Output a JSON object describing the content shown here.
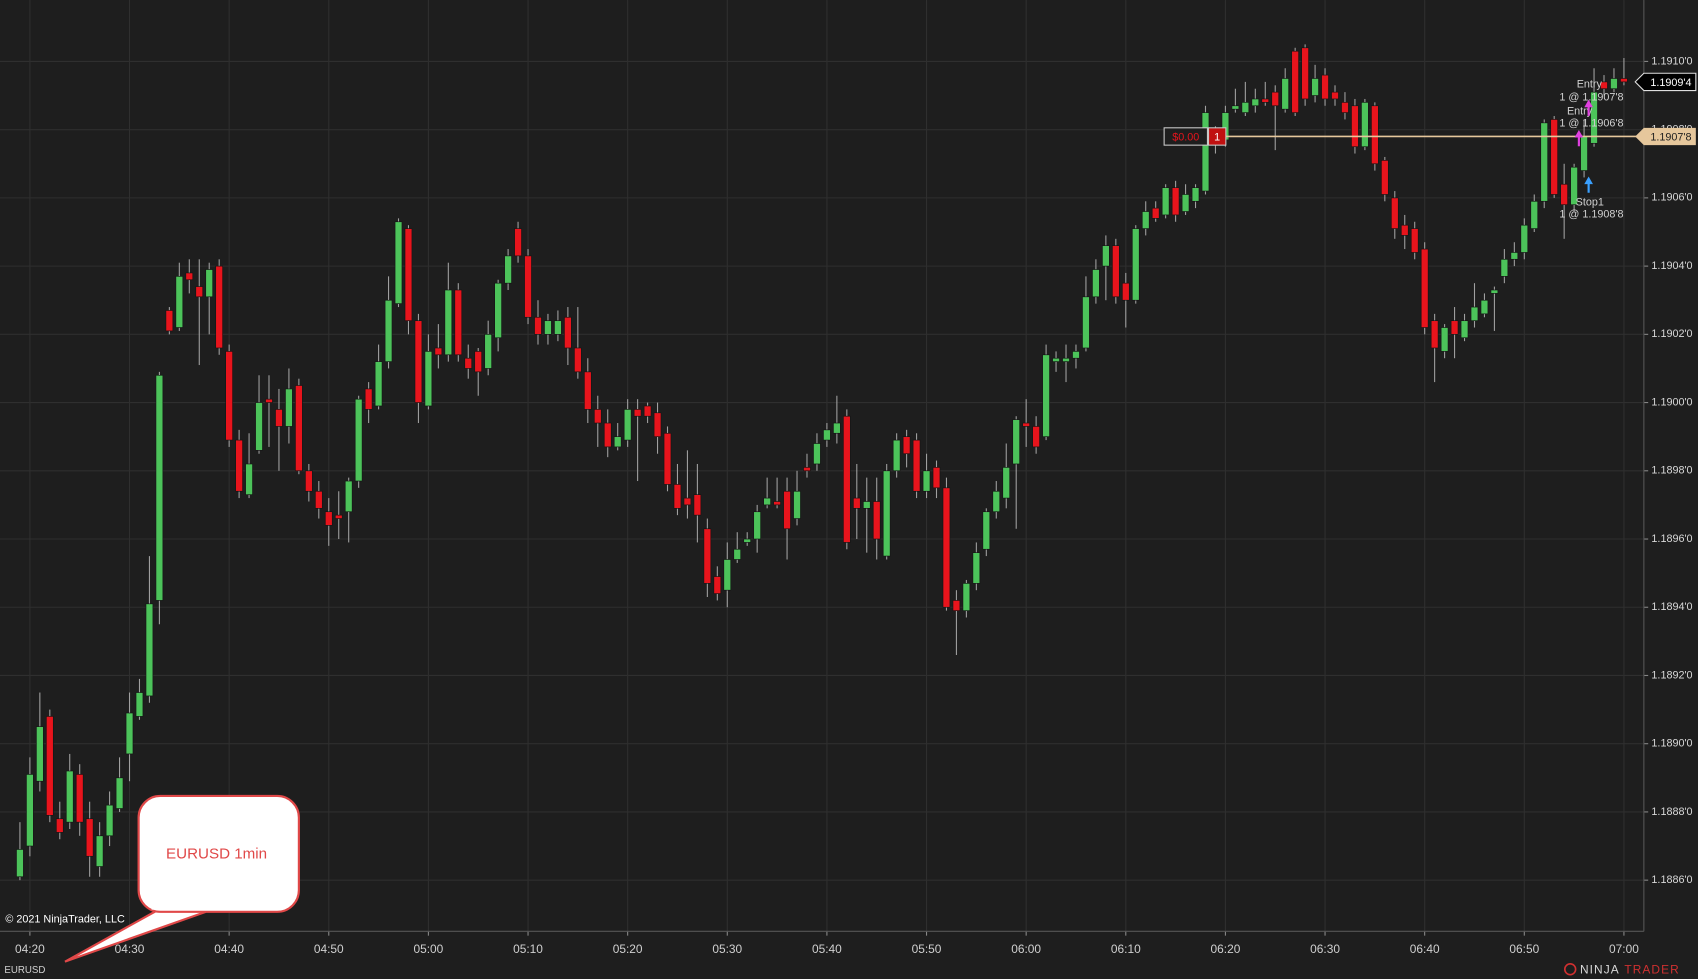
{
  "chart_data": {
    "type": "candlestick",
    "instrument": "EURUSD",
    "copyright": "© 2021 NinjaTrader, LLC",
    "annotation": "EURUSD 1min",
    "logo": [
      "NINJA",
      "TRADER"
    ],
    "up_color": "#4cc35a",
    "down_color": "#e8141c",
    "grid": true,
    "x": [
      "04:19",
      "04:20",
      "04:21",
      "04:22",
      "04:23",
      "04:24",
      "04:25",
      "04:26",
      "04:27",
      "04:28",
      "04:29",
      "04:30",
      "04:31",
      "04:32",
      "04:33",
      "04:34",
      "04:35",
      "04:36",
      "04:37",
      "04:38",
      "04:39",
      "04:40",
      "04:41",
      "04:42",
      "04:43",
      "04:44",
      "04:45",
      "04:46",
      "04:47",
      "04:48",
      "04:49",
      "04:50",
      "04:51",
      "04:52",
      "04:53",
      "04:54",
      "04:55",
      "04:56",
      "04:57",
      "04:58",
      "04:59",
      "05:00",
      "05:01",
      "05:02",
      "05:03",
      "05:04",
      "05:05",
      "05:06",
      "05:07",
      "05:08",
      "05:09",
      "05:10",
      "05:11",
      "05:12",
      "05:13",
      "05:14",
      "05:15",
      "05:16",
      "05:17",
      "05:18",
      "05:19",
      "05:20",
      "05:21",
      "05:22",
      "05:23",
      "05:24",
      "05:25",
      "05:26",
      "05:27",
      "05:28",
      "05:29",
      "05:30",
      "05:31",
      "05:32",
      "05:33",
      "05:34",
      "05:35",
      "05:36",
      "05:37",
      "05:38",
      "05:39",
      "05:40",
      "05:41",
      "05:42",
      "05:43",
      "05:44",
      "05:45",
      "05:46",
      "05:47",
      "05:48",
      "05:49",
      "05:50",
      "05:51",
      "05:52",
      "05:53",
      "05:54",
      "05:55",
      "05:56",
      "05:57",
      "05:58",
      "05:59",
      "06:00",
      "06:01",
      "06:02",
      "06:03",
      "06:04",
      "06:05",
      "06:06",
      "06:07",
      "06:08",
      "06:09",
      "06:10",
      "06:11",
      "06:12",
      "06:13",
      "06:14",
      "06:15",
      "06:16",
      "06:17",
      "06:18",
      "06:19",
      "06:20",
      "06:21",
      "06:22",
      "06:23",
      "06:24",
      "06:25",
      "06:26",
      "06:27",
      "06:28",
      "06:29",
      "06:30",
      "06:31",
      "06:32",
      "06:33",
      "06:34",
      "06:35",
      "06:36",
      "06:37",
      "06:38",
      "06:39",
      "06:40",
      "06:41",
      "06:42",
      "06:43",
      "06:44",
      "06:45",
      "06:46",
      "06:47",
      "06:48",
      "06:49",
      "06:50",
      "06:51",
      "06:52",
      "06:53",
      "06:54",
      "06:55",
      "06:56",
      "06:57",
      "06:58",
      "06:59",
      "07:00"
    ],
    "open": [
      1.18861,
      1.1887,
      1.18889,
      1.18908,
      1.18878,
      1.18877,
      1.18891,
      1.18878,
      1.18864,
      1.18873,
      1.18881,
      1.18897,
      1.18908,
      1.18914,
      1.18942,
      1.19027,
      1.19022,
      1.19038,
      1.19034,
      1.19031,
      1.1904,
      1.19015,
      1.18989,
      1.18973,
      1.18986,
      1.19001,
      1.18998,
      1.18993,
      1.19005,
      1.1898,
      1.18974,
      1.18968,
      1.18967,
      1.18968,
      1.18977,
      1.19004,
      1.18999,
      1.19012,
      1.19029,
      1.19051,
      1.19024,
      1.18999,
      1.19016,
      1.19014,
      1.19033,
      1.19013,
      1.19015,
      1.1901,
      1.19019,
      1.19035,
      1.19051,
      1.19043,
      1.19025,
      1.1902,
      1.1902,
      1.19025,
      1.19016,
      1.19009,
      1.18998,
      1.18994,
      1.18987,
      1.18989,
      1.18998,
      1.18999,
      1.18997,
      1.18991,
      1.18976,
      1.18972,
      1.18973,
      1.18963,
      1.18949,
      1.18945,
      1.18954,
      1.18959,
      1.1896,
      1.1897,
      1.18971,
      1.18974,
      1.18966,
      1.18981,
      1.18982,
      1.18989,
      1.18991,
      1.18996,
      1.18972,
      1.18969,
      1.18971,
      1.18955,
      1.1898,
      1.1899,
      1.18989,
      1.18974,
      1.18981,
      1.18975,
      1.18942,
      1.18939,
      1.18947,
      1.18957,
      1.18968,
      1.18972,
      1.18982,
      1.18994,
      1.18993,
      1.1899,
      1.19012,
      1.19012,
      1.19013,
      1.19016,
      1.19031,
      1.1904,
      1.19046,
      1.19035,
      1.1903,
      1.19051,
      1.19057,
      1.19055,
      1.19063,
      1.19056,
      1.19059,
      1.19062,
      1.19078,
      1.19077,
      1.19086,
      1.19085,
      1.19087,
      1.19089,
      1.19091,
      1.19086,
      1.19103,
      1.19104,
      1.1909,
      1.19096,
      1.19091,
      1.19088,
      1.19087,
      1.19075,
      1.19087,
      1.19071,
      1.1906,
      1.19052,
      1.19051,
      1.19045,
      1.19024,
      1.19015,
      1.19024,
      1.19019,
      1.19024,
      1.19026,
      1.19032,
      1.19037,
      1.19042,
      1.19044,
      1.19051,
      1.19059,
      1.19083,
      1.19064,
      1.19058,
      1.19068,
      1.19076,
      1.19094,
      1.19092,
      1.19095
    ],
    "high": [
      1.18877,
      1.18896,
      1.18915,
      1.1891,
      1.18883,
      1.18897,
      1.18894,
      1.18883,
      1.18877,
      1.18886,
      1.18896,
      1.18915,
      1.18919,
      1.18955,
      1.19009,
      1.19028,
      1.19041,
      1.19042,
      1.19042,
      1.19041,
      1.19042,
      1.19017,
      1.18992,
      1.18991,
      1.19008,
      1.19008,
      1.19004,
      1.1901,
      1.19007,
      1.18982,
      1.18977,
      1.18972,
      1.18974,
      1.18978,
      1.19002,
      1.19006,
      1.19017,
      1.19037,
      1.19054,
      1.19052,
      1.19026,
      1.1902,
      1.19023,
      1.19041,
      1.19035,
      1.19017,
      1.19016,
      1.19024,
      1.19036,
      1.19045,
      1.19053,
      1.19045,
      1.1903,
      1.19026,
      1.19027,
      1.19028,
      1.19028,
      1.19013,
      1.19002,
      1.18998,
      1.18994,
      1.19001,
      1.19001,
      1.19,
      1.19,
      1.18993,
      1.18982,
      1.18986,
      1.18982,
      1.18966,
      1.18952,
      1.18959,
      1.18962,
      1.18962,
      1.1897,
      1.18978,
      1.18978,
      1.18978,
      1.1898,
      1.18985,
      1.18991,
      1.18994,
      1.19002,
      1.18998,
      1.18982,
      1.18978,
      1.18978,
      1.18982,
      1.18991,
      1.18992,
      1.18991,
      1.18985,
      1.18983,
      1.18978,
      1.18945,
      1.18948,
      1.18959,
      1.18969,
      1.18977,
      1.18988,
      1.18996,
      1.19001,
      1.18996,
      1.19017,
      1.19015,
      1.19017,
      1.19017,
      1.19037,
      1.19042,
      1.19049,
      1.19048,
      1.19038,
      1.19052,
      1.19059,
      1.19059,
      1.19064,
      1.19065,
      1.19064,
      1.19064,
      1.19087,
      1.19081,
      1.19087,
      1.19092,
      1.19094,
      1.19092,
      1.19094,
      1.19093,
      1.19098,
      1.19104,
      1.19105,
      1.19099,
      1.19098,
      1.19093,
      1.19091,
      1.19089,
      1.19089,
      1.19088,
      1.19072,
      1.19062,
      1.19055,
      1.19053,
      1.19047,
      1.19026,
      1.19023,
      1.19028,
      1.19026,
      1.19035,
      1.19032,
      1.19034,
      1.19045,
      1.19047,
      1.19054,
      1.19061,
      1.19083,
      1.19084,
      1.1907,
      1.1907,
      1.19083,
      1.19098,
      1.19096,
      1.19098,
      1.19101
    ],
    "low": [
      1.1886,
      1.18867,
      1.18886,
      1.18877,
      1.18872,
      1.18875,
      1.18873,
      1.18861,
      1.18861,
      1.1887,
      1.1888,
      1.18889,
      1.18907,
      1.18912,
      1.18935,
      1.1902,
      1.19021,
      1.19032,
      1.19011,
      1.1902,
      1.19014,
      1.18987,
      1.18972,
      1.18972,
      1.18985,
      1.18987,
      1.1898,
      1.18988,
      1.18979,
      1.18971,
      1.18966,
      1.18958,
      1.1896,
      1.18959,
      1.18975,
      1.18994,
      1.18998,
      1.1901,
      1.19028,
      1.1902,
      1.18994,
      1.18998,
      1.1901,
      1.19012,
      1.19012,
      1.19007,
      1.19002,
      1.19008,
      1.19015,
      1.19033,
      1.19041,
      1.19023,
      1.19017,
      1.19017,
      1.19018,
      1.19011,
      1.19007,
      1.18994,
      1.18987,
      1.18984,
      1.18986,
      1.18987,
      1.18977,
      1.18994,
      1.18985,
      1.18974,
      1.18967,
      1.18966,
      1.18959,
      1.18943,
      1.18942,
      1.1894,
      1.18953,
      1.18958,
      1.18956,
      1.18969,
      1.18969,
      1.18954,
      1.18964,
      1.18978,
      1.1898,
      1.18987,
      1.18988,
      1.18957,
      1.1896,
      1.18956,
      1.18954,
      1.18954,
      1.18978,
      1.18981,
      1.18972,
      1.18972,
      1.18972,
      1.18939,
      1.18926,
      1.18937,
      1.18945,
      1.18955,
      1.18966,
      1.18969,
      1.18963,
      1.18987,
      1.18985,
      1.18989,
      1.19009,
      1.19006,
      1.1901,
      1.19015,
      1.19029,
      1.1903,
      1.19029,
      1.19022,
      1.19029,
      1.19049,
      1.19053,
      1.19054,
      1.19053,
      1.19055,
      1.19057,
      1.19061,
      1.19073,
      1.19075,
      1.19085,
      1.19084,
      1.19085,
      1.19087,
      1.19074,
      1.19085,
      1.19084,
      1.19087,
      1.19088,
      1.19087,
      1.19087,
      1.19083,
      1.19073,
      1.19074,
      1.19068,
      1.19059,
      1.19048,
      1.19045,
      1.19042,
      1.1902,
      1.19006,
      1.19013,
      1.19013,
      1.19018,
      1.19022,
      1.19025,
      1.19021,
      1.19035,
      1.1904,
      1.19042,
      1.1905,
      1.19057,
      1.1906,
      1.19048,
      1.19056,
      1.19066,
      1.19075,
      1.1909,
      1.19091,
      1.19093
    ],
    "close": [
      1.18869,
      1.18891,
      1.18905,
      1.18879,
      1.18874,
      1.18892,
      1.18877,
      1.18867,
      1.18873,
      1.18882,
      1.1889,
      1.18909,
      1.18915,
      1.18941,
      1.19008,
      1.19021,
      1.19037,
      1.19036,
      1.19031,
      1.19039,
      1.19016,
      1.18989,
      1.18974,
      1.18982,
      1.19,
      1.19,
      1.18993,
      1.19004,
      1.1898,
      1.18974,
      1.18969,
      1.18964,
      1.18966,
      1.18977,
      1.19001,
      1.18998,
      1.19012,
      1.1903,
      1.19053,
      1.19024,
      1.19,
      1.19015,
      1.19014,
      1.19033,
      1.19014,
      1.1901,
      1.19009,
      1.1902,
      1.19035,
      1.19043,
      1.19043,
      1.19025,
      1.1902,
      1.19024,
      1.19024,
      1.19016,
      1.19009,
      1.18998,
      1.18994,
      1.18987,
      1.1899,
      1.18998,
      1.18996,
      1.18996,
      1.1899,
      1.18976,
      1.18969,
      1.1897,
      1.18967,
      1.18947,
      1.18944,
      1.18954,
      1.18957,
      1.1896,
      1.18968,
      1.18972,
      1.1897,
      1.18963,
      1.18974,
      1.1898,
      1.18988,
      1.18992,
      1.18994,
      1.18959,
      1.18969,
      1.18971,
      1.1896,
      1.1898,
      1.18989,
      1.18985,
      1.18974,
      1.1898,
      1.18975,
      1.1894,
      1.18939,
      1.18947,
      1.18956,
      1.18968,
      1.18974,
      1.18981,
      1.18995,
      1.18993,
      1.18987,
      1.19014,
      1.19013,
      1.19013,
      1.19015,
      1.19031,
      1.19039,
      1.19046,
      1.19031,
      1.1903,
      1.19051,
      1.19056,
      1.19054,
      1.19063,
      1.19055,
      1.19061,
      1.19063,
      1.19085,
      1.19076,
      1.19085,
      1.19087,
      1.19088,
      1.19089,
      1.19088,
      1.19087,
      1.19095,
      1.19085,
      1.19089,
      1.19095,
      1.19089,
      1.19089,
      1.19085,
      1.19075,
      1.19088,
      1.1907,
      1.19061,
      1.19051,
      1.19049,
      1.19044,
      1.19022,
      1.19016,
      1.19022,
      1.1902,
      1.19024,
      1.19028,
      1.1903,
      1.19033,
      1.19042,
      1.19044,
      1.19052,
      1.19059,
      1.19082,
      1.19061,
      1.19058,
      1.19069,
      1.19078,
      1.19091,
      1.19092,
      1.19095,
      1.19094
    ],
    "xlim": [
      "04:17",
      "07:02"
    ],
    "xticks": [
      "04:20",
      "04:30",
      "04:40",
      "04:50",
      "05:00",
      "05:10",
      "05:20",
      "05:30",
      "05:40",
      "05:50",
      "06:00",
      "06:10",
      "06:20",
      "06:30",
      "06:40",
      "06:50",
      "07:00"
    ],
    "ylim": [
      1.18845,
      1.19118
    ],
    "yticks": [
      {
        "value": 1.1886,
        "label": "1.1886'0"
      },
      {
        "value": 1.1888,
        "label": "1.1888'0"
      },
      {
        "value": 1.189,
        "label": "1.1890'0"
      },
      {
        "value": 1.1892,
        "label": "1.1892'0"
      },
      {
        "value": 1.1894,
        "label": "1.1894'0"
      },
      {
        "value": 1.1896,
        "label": "1.1896'0"
      },
      {
        "value": 1.1898,
        "label": "1.1898'0"
      },
      {
        "value": 1.19,
        "label": "1.1900'0"
      },
      {
        "value": 1.1902,
        "label": "1.1902'0"
      },
      {
        "value": 1.1904,
        "label": "1.1904'0"
      },
      {
        "value": 1.1906,
        "label": "1.1906'0"
      },
      {
        "value": 1.1908,
        "label": "1.1908'0"
      },
      {
        "value": 1.191,
        "label": "1.1910'0"
      }
    ],
    "price_marker": {
      "value": 1.19094,
      "label": "1.1909'4"
    },
    "position": {
      "price": {
        "value": 1.19078,
        "label": "1.1907'8"
      },
      "pnl": "$0.00",
      "quantity": 1
    },
    "orders": [
      {
        "name": "Entry",
        "label": "1 @ 1.1907'8"
      },
      {
        "name": "Entry",
        "label": "1 @ 1.1906'8"
      },
      {
        "name": "Stop1",
        "label": "1 @ 1.1908'8"
      }
    ]
  }
}
